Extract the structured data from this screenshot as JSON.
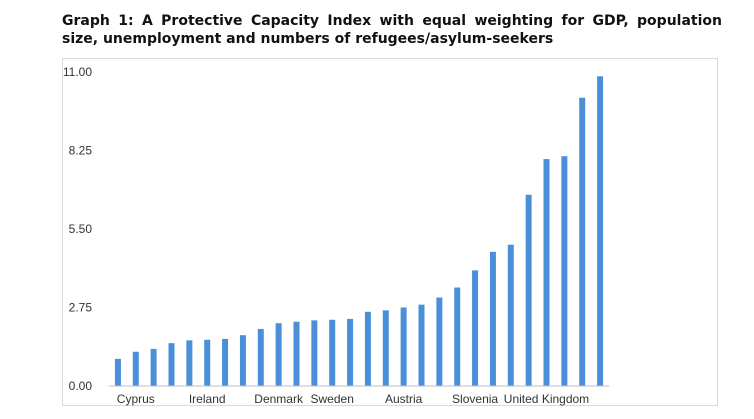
{
  "title": "Graph 1: A Protective Capacity Index with equal weighting for GDP, population size, unemployment and numbers of refugees/asylum-seekers",
  "chart_data": {
    "type": "bar",
    "title": "Graph 1: A Protective Capacity Index with equal weighting for GDP, population size, unemployment and numbers of refugees/asylum-seekers",
    "xlabel": "",
    "ylabel": "",
    "ylim": [
      0,
      11
    ],
    "yticks": [
      "0.00",
      "2.75",
      "5.50",
      "8.25",
      "11.00"
    ],
    "x_tick_labels": [
      {
        "index": 1,
        "label": "Cyprus"
      },
      {
        "index": 5,
        "label": "Ireland"
      },
      {
        "index": 9,
        "label": "Denmark"
      },
      {
        "index": 12,
        "label": "Sweden"
      },
      {
        "index": 16,
        "label": "Austria"
      },
      {
        "index": 20,
        "label": "Slovenia"
      },
      {
        "index": 24,
        "label": "United Kingdom"
      }
    ],
    "grid": false,
    "bar_color": "#4a90d9",
    "values": [
      0.95,
      1.2,
      1.3,
      1.5,
      1.6,
      1.62,
      1.65,
      1.78,
      2.0,
      2.2,
      2.25,
      2.3,
      2.32,
      2.35,
      2.6,
      2.65,
      2.75,
      2.85,
      3.1,
      3.45,
      4.05,
      4.7,
      4.95,
      6.7,
      7.95,
      8.05,
      10.1,
      10.85
    ]
  }
}
